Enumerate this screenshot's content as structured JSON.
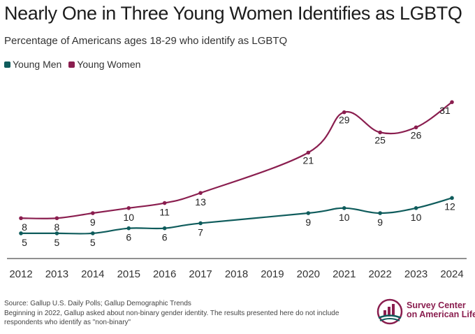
{
  "title": "Nearly One in Three Young Women Identifies as LGBTQ",
  "subtitle": "Percentage of Americans ages 18-29 who identify as LGBTQ",
  "legend": [
    {
      "label": "Young Men",
      "color": "#0f5c5c"
    },
    {
      "label": "Young Women",
      "color": "#8a1e4f"
    }
  ],
  "source": "Source: Gallup U.S. Daily Polls; Gallup Demographic Trends",
  "note": "Beginning in 2022, Gallup asked about non-binary gender identity. The results presented here do not include respondents who identify as \"non-binary\"",
  "logo": {
    "line1": "Survey Center",
    "line2": "on American Life"
  },
  "chart_data": {
    "type": "line",
    "title": "Nearly One in Three Young Women Identifies as LGBTQ",
    "subtitle": "Percentage of Americans ages 18-29 who identify as LGBTQ",
    "x": [
      2012,
      2013,
      2014,
      2015,
      2016,
      2017,
      2018,
      2019,
      2020,
      2021,
      2022,
      2023,
      2024
    ],
    "series": [
      {
        "name": "Young Men",
        "color": "#0f5c5c",
        "points": [
          [
            2012,
            5
          ],
          [
            2013,
            5
          ],
          [
            2014,
            5
          ],
          [
            2015,
            6
          ],
          [
            2016,
            6
          ],
          [
            2017,
            7
          ],
          [
            2020,
            9
          ],
          [
            2021,
            10
          ],
          [
            2022,
            9
          ],
          [
            2023,
            10
          ],
          [
            2024,
            12
          ]
        ]
      },
      {
        "name": "Young Women",
        "color": "#8a1e4f",
        "points": [
          [
            2012,
            8
          ],
          [
            2013,
            8
          ],
          [
            2014,
            9
          ],
          [
            2015,
            10
          ],
          [
            2016,
            11
          ],
          [
            2017,
            13
          ],
          [
            2020,
            21
          ],
          [
            2021,
            29
          ],
          [
            2022,
            25
          ],
          [
            2023,
            26
          ],
          [
            2024,
            31
          ]
        ]
      }
    ],
    "ylim": [
      0,
      35
    ],
    "grid": false,
    "legend_position": "top-left"
  }
}
